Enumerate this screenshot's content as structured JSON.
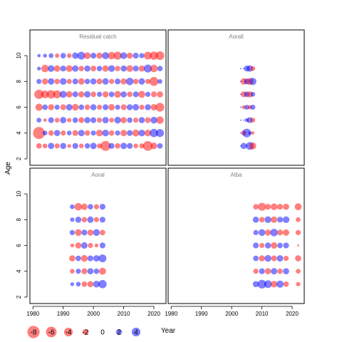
{
  "chart_data": {
    "type": "scatter",
    "ylabel": "Age",
    "xlabel": "Year",
    "xlim": [
      1979,
      2024
    ],
    "ylim": [
      1.5,
      11
    ],
    "x_ticks": [
      1980,
      1990,
      2000,
      2010,
      2020
    ],
    "y_ticks": [
      2,
      4,
      6,
      8,
      10
    ],
    "colors": {
      "positive": "#0000ff",
      "negative": "#ff0000",
      "marker_alpha": 0.5
    },
    "size_legend": [
      {
        "label": "-8",
        "value": -8
      },
      {
        "label": "-6",
        "value": -6
      },
      {
        "label": "-4",
        "value": -4
      },
      {
        "label": "-2",
        "value": -2
      },
      {
        "label": "0",
        "value": 0
      },
      {
        "label": "2",
        "value": 2
      },
      {
        "label": "4",
        "value": 4
      }
    ],
    "panels": [
      {
        "title": "Residual catch",
        "ages": [
          3,
          4,
          5,
          6,
          7,
          8,
          9,
          10
        ],
        "years": [
          1982,
          1984,
          1986,
          1988,
          1990,
          1992,
          1994,
          1996,
          1998,
          2000,
          2002,
          2004,
          2006,
          2008,
          2010,
          2012,
          2014,
          2016,
          2018,
          2020,
          2022
        ],
        "residuals": [
          [
            -1.6,
            -1.2,
            2.1,
            -1.4,
            2.0,
            -0.8,
            1.8,
            -1.2,
            1.5,
            2.2,
            -1.4,
            -5.2,
            1.8,
            -1.6,
            2.2,
            1.8,
            -1.2,
            -1.4,
            -5.0,
            -2.4,
            1.6
          ],
          [
            -7.6,
            1.2,
            -1.6,
            2.0,
            -1.4,
            1.2,
            -1.8,
            2.2,
            -1.6,
            1.4,
            -2.4,
            2.4,
            -1.6,
            1.4,
            -2.2,
            1.8,
            -2.6,
            2.4,
            -2.4,
            3.6,
            3.4
          ],
          [
            1.2,
            -0.6,
            1.8,
            -1.2,
            2.2,
            -1.0,
            1.6,
            -1.8,
            2.0,
            1.8,
            -1.4,
            2.2,
            -1.2,
            2.4,
            -2.0,
            1.6,
            -1.4,
            2.0,
            -1.8,
            2.4,
            -3.0
          ],
          [
            -2.8,
            1.6,
            -2.0,
            1.4,
            -1.8,
            2.2,
            -2.4,
            1.6,
            -1.6,
            2.0,
            -1.4,
            1.8,
            -2.2,
            1.4,
            -1.8,
            2.0,
            2.2,
            -1.4,
            2.0,
            -2.2,
            -4.0
          ],
          [
            -4.6,
            -3.2,
            -3.8,
            -3.4,
            2.6,
            -2.2,
            1.8,
            -2.0,
            2.2,
            -1.6,
            1.4,
            -2.0,
            1.6,
            -2.4,
            2.0,
            -1.6,
            1.8,
            -2.6,
            1.4,
            -1.8,
            -2.0
          ],
          [
            1.4,
            -2.0,
            2.2,
            -1.6,
            2.4,
            -1.4,
            1.8,
            -2.2,
            1.6,
            2.0,
            -1.8,
            2.2,
            -1.4,
            1.8,
            -2.0,
            3.0,
            -1.6,
            2.2,
            -1.4,
            -4.2,
            1.2
          ],
          [
            0.8,
            -3.0,
            2.4,
            -2.2,
            1.8,
            -2.4,
            2.2,
            -1.6,
            2.0,
            -1.8,
            1.6,
            -2.2,
            2.4,
            -1.6,
            2.0,
            -2.4,
            1.8,
            -2.0,
            3.4,
            -3.0,
            1.6
          ],
          [
            0.6,
            0.8,
            1.2,
            -1.0,
            1.6,
            -1.2,
            2.2,
            3.2,
            -2.4,
            1.8,
            -2.0,
            2.6,
            -3.0,
            -3.4,
            2.4,
            -2.0,
            1.8,
            1.4,
            -3.2,
            -3.6,
            -4.0
          ]
        ]
      },
      {
        "title": "Aorall",
        "ages": [
          3,
          4,
          5,
          6,
          7,
          8,
          9
        ],
        "years": [
          2003,
          2004,
          2005,
          2006,
          2007
        ],
        "residuals": [
          [
            0,
            2.0,
            0,
            3.2,
            -2.6
          ],
          [
            0,
            -1.4,
            4.0,
            0.6,
            -0.6
          ],
          [
            0,
            0,
            0.8,
            1.8,
            -1.2
          ],
          [
            0,
            -0.8,
            1.2,
            -1.0,
            1.4
          ],
          [
            0,
            -1.8,
            1.6,
            -2.0,
            1.2
          ],
          [
            0,
            -2.2,
            1.8,
            -2.6,
            2.8
          ],
          [
            0,
            0,
            1.8,
            2.2,
            -1.2
          ]
        ]
      },
      {
        "title": "Aoral",
        "ages": [
          3,
          4,
          5,
          6,
          7,
          8,
          9
        ],
        "years": [
          1993,
          1995,
          1997,
          1999,
          2001,
          2003
        ],
        "residuals": [
          [
            0.8,
            1.2,
            -1.6,
            -2.0,
            2.4,
            3.6
          ],
          [
            -1.2,
            1.4,
            -1.8,
            2.0,
            1.6,
            -2.6
          ],
          [
            -2.0,
            1.6,
            -2.4,
            1.8,
            2.2,
            3.2
          ],
          [
            -0.8,
            -2.0,
            2.2,
            -1.4,
            -0.8,
            1.8
          ],
          [
            1.4,
            -2.4,
            1.8,
            -2.0,
            2.4,
            -1.6
          ],
          [
            1.0,
            2.0,
            -1.6,
            2.2,
            -1.4,
            1.8
          ],
          [
            1.2,
            -3.0,
            -2.2,
            1.6,
            -1.4,
            1.8
          ]
        ]
      },
      {
        "title": "Alba",
        "ages": [
          3,
          4,
          5,
          6,
          7,
          8,
          9
        ],
        "years": [
          2008,
          2010,
          2012,
          2014,
          2016,
          2018,
          2022
        ],
        "residuals": [
          [
            2.0,
            4.0,
            3.2,
            -2.4,
            2.8,
            -1.6,
            -1.0
          ],
          [
            -1.4,
            1.8,
            -2.0,
            2.2,
            -1.6,
            2.0,
            -1.2
          ],
          [
            1.6,
            -2.0,
            2.4,
            -1.8,
            2.2,
            -1.4,
            -2.0
          ],
          [
            1.8,
            -1.4,
            2.0,
            -2.2,
            1.6,
            1.8,
            -0.2
          ],
          [
            1.4,
            2.4,
            -2.0,
            3.0,
            -1.8,
            -2.2,
            -1.4
          ],
          [
            2.0,
            -1.6,
            2.4,
            -2.2,
            1.8,
            2.4,
            -1.2
          ],
          [
            -1.6,
            -3.4,
            -1.8,
            -2.4,
            -1.8,
            -2.0,
            -2.6
          ]
        ]
      }
    ]
  }
}
